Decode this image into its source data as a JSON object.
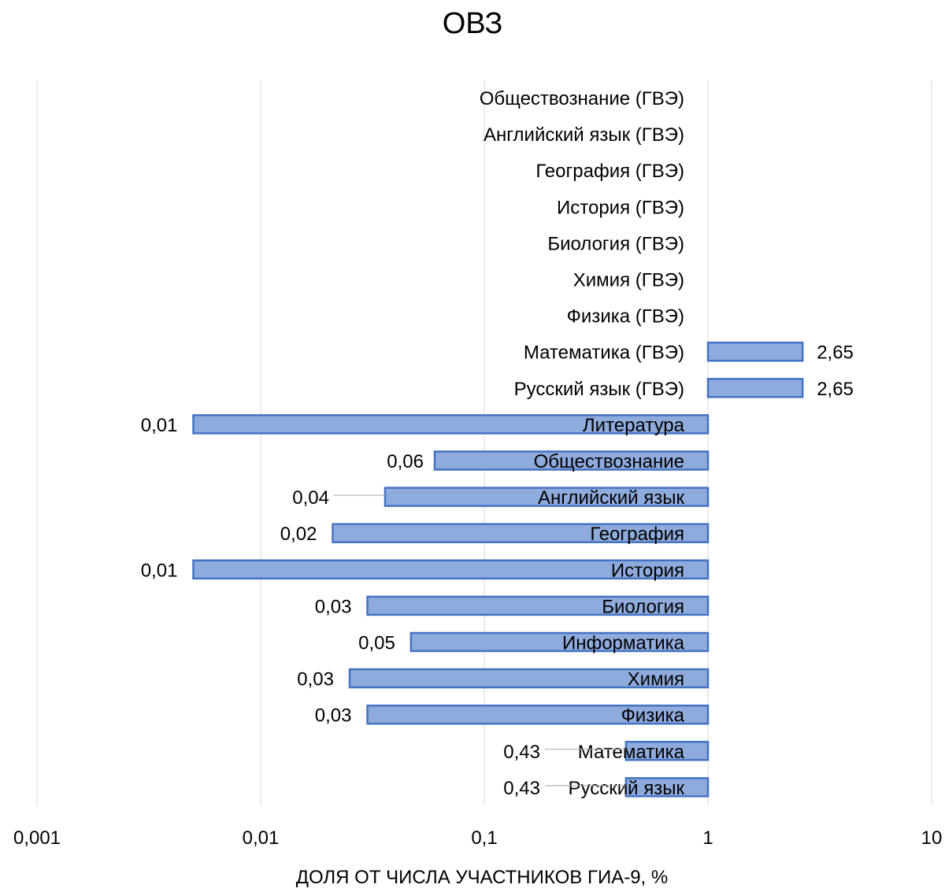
{
  "chart_data": {
    "type": "bar",
    "orientation": "horizontal",
    "title": "ОВЗ",
    "xlabel": "ДОЛЯ ОТ ЧИСЛА УЧАСТНИКОВ ГИА-9, %",
    "ylabel": "",
    "x_scale": "log",
    "xlim": [
      0.001,
      10
    ],
    "x_ticks": [
      "0,001",
      "0,01",
      "0,1",
      "1",
      "10"
    ],
    "x_tick_values": [
      0.001,
      0.01,
      0.1,
      1,
      10
    ],
    "grid": "vertical",
    "legend": "none",
    "bar_color": "#8faadc",
    "bar_edge_color": "#4472c4",
    "categories": [
      "Обществознание (ГВЭ)",
      "Английский язык (ГВЭ)",
      "География (ГВЭ)",
      "История (ГВЭ)",
      "Биология (ГВЭ)",
      "Химия (ГВЭ)",
      "Физика (ГВЭ)",
      "Математика (ГВЭ)",
      "Русский язык (ГВЭ)",
      "Литература",
      "Обществознание",
      "Английский язык",
      "География",
      "История",
      "Биология",
      "Информатика",
      "Химия",
      "Физика",
      "Математика",
      "Русский язык"
    ],
    "values": [
      null,
      null,
      null,
      null,
      null,
      null,
      null,
      2.65,
      2.65,
      0.005,
      0.06,
      0.036,
      0.021,
      0.005,
      0.03,
      0.047,
      0.025,
      0.03,
      0.43,
      0.43
    ],
    "data_labels": [
      "",
      "",
      "",
      "",
      "",
      "",
      "",
      "2,65",
      "2,65",
      "0,01",
      "0,06",
      "0,04",
      "0,02",
      "0,01",
      "0,03",
      "0,05",
      "0,03",
      "0,03",
      "0,43",
      "0,43"
    ]
  }
}
